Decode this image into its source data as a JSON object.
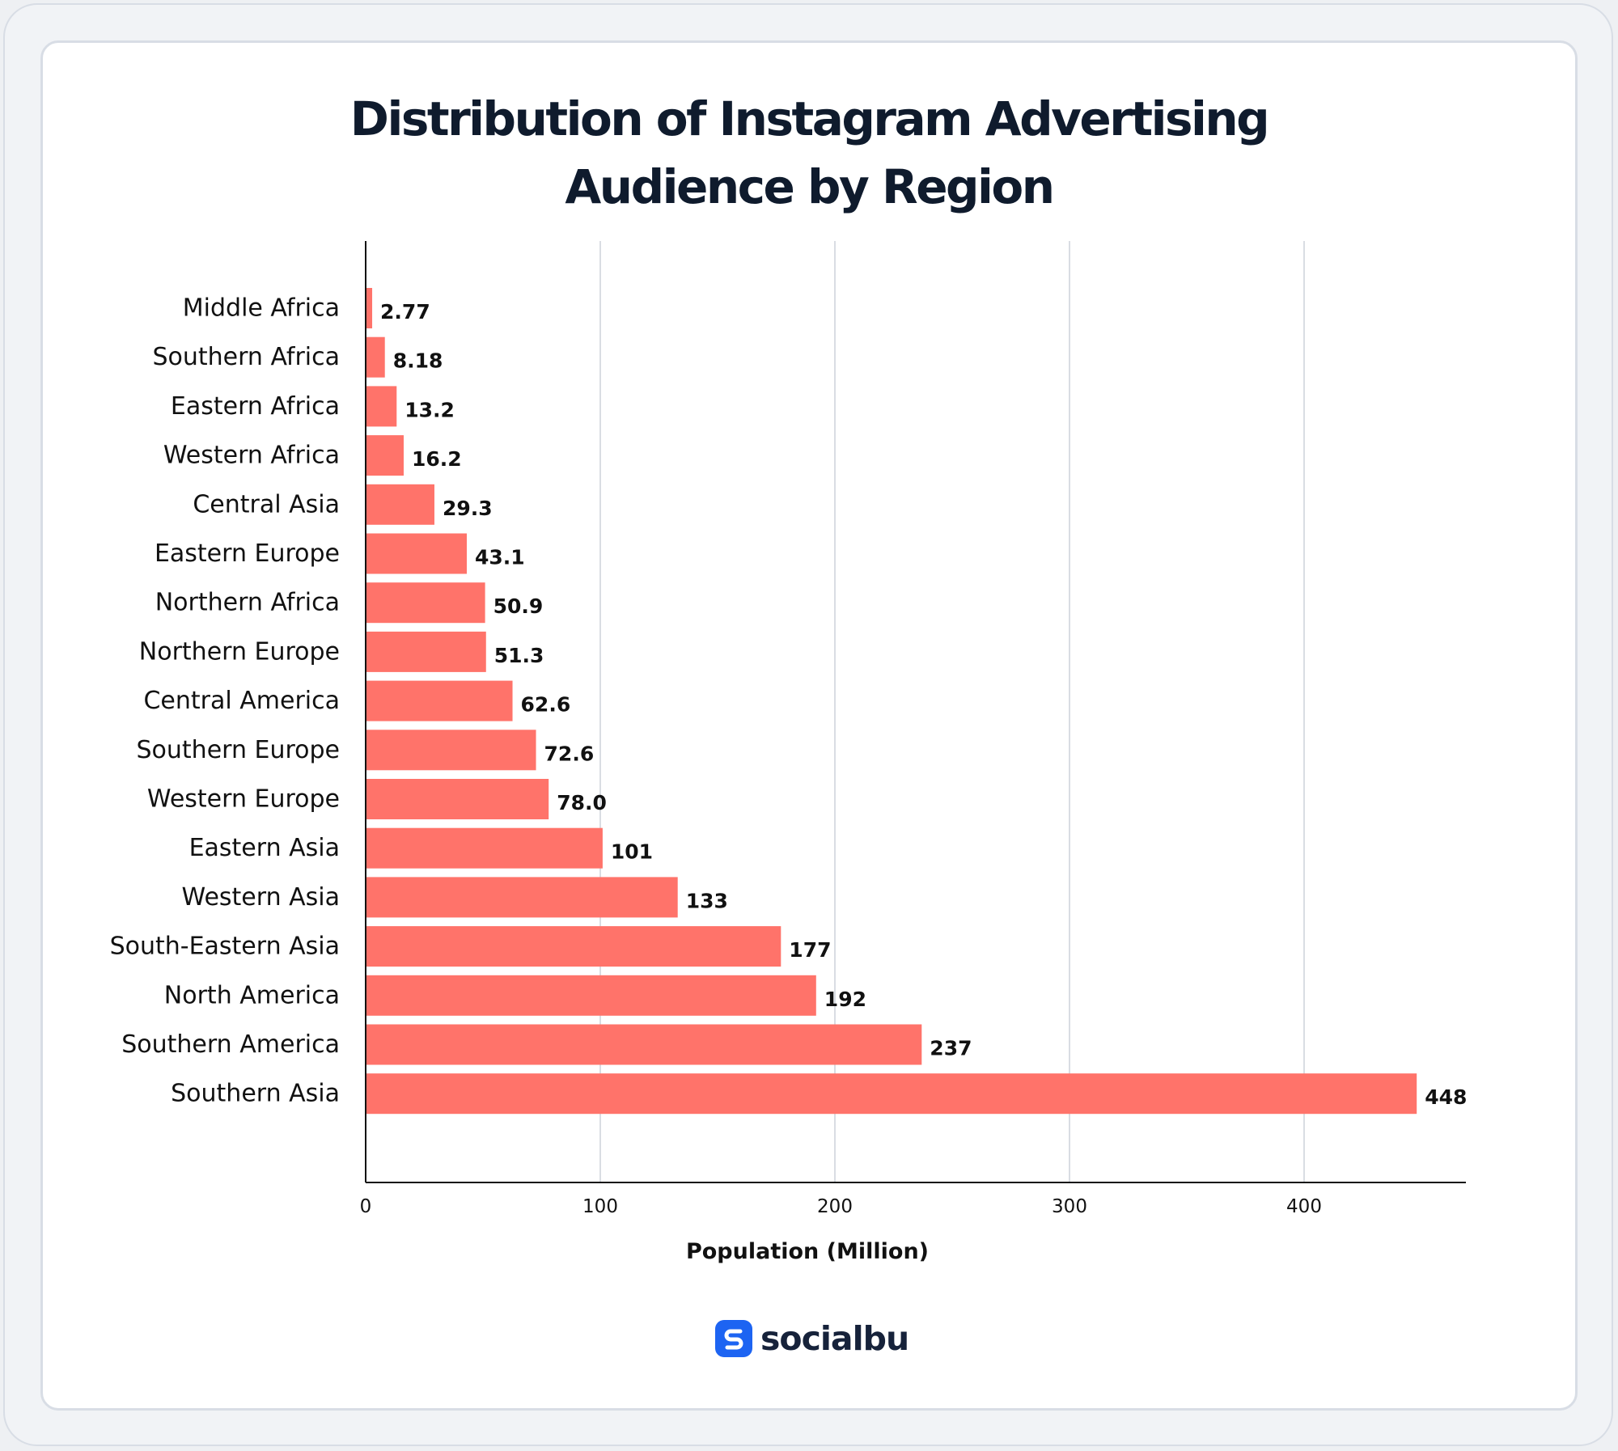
{
  "brand": {
    "name": "socialbu",
    "icon": "socialbu-logo-icon",
    "color": "#1d64f2"
  },
  "chart_data": {
    "type": "bar",
    "orientation": "horizontal",
    "title": "Distribution of Instagram Advertising Audience by Region",
    "title_lines": [
      "Distribution of Instagram Advertising",
      "Audience by Region"
    ],
    "xlabel": "Population (Million)",
    "ylabel": "",
    "xlim": [
      0,
      468
    ],
    "xticks": [
      0,
      100,
      200,
      300,
      400
    ],
    "grid": "vertical",
    "legend": "none",
    "bar_color": "#ff736a",
    "categories": [
      "Middle Africa",
      "Southern Africa",
      "Eastern Africa",
      "Western Africa",
      "Central Asia",
      "Eastern Europe",
      "Northern Africa",
      "Northern Europe",
      "Central America",
      "Southern Europe",
      "Western Europe",
      "Eastern Asia",
      "Western Asia",
      "South-Eastern Asia",
      "North America",
      "Southern America",
      "Southern Asia"
    ],
    "values": [
      2.77,
      8.18,
      13.2,
      16.2,
      29.3,
      43.1,
      50.9,
      51.3,
      62.6,
      72.6,
      78.0,
      101,
      133,
      177,
      192,
      237,
      448
    ],
    "data_labels": [
      "2.77",
      "8.18",
      "13.2",
      "16.2",
      "29.3",
      "43.1",
      "50.9",
      "51.3",
      "62.6",
      "72.6",
      "78.0",
      "101",
      "133",
      "177",
      "192",
      "237",
      "448"
    ]
  }
}
